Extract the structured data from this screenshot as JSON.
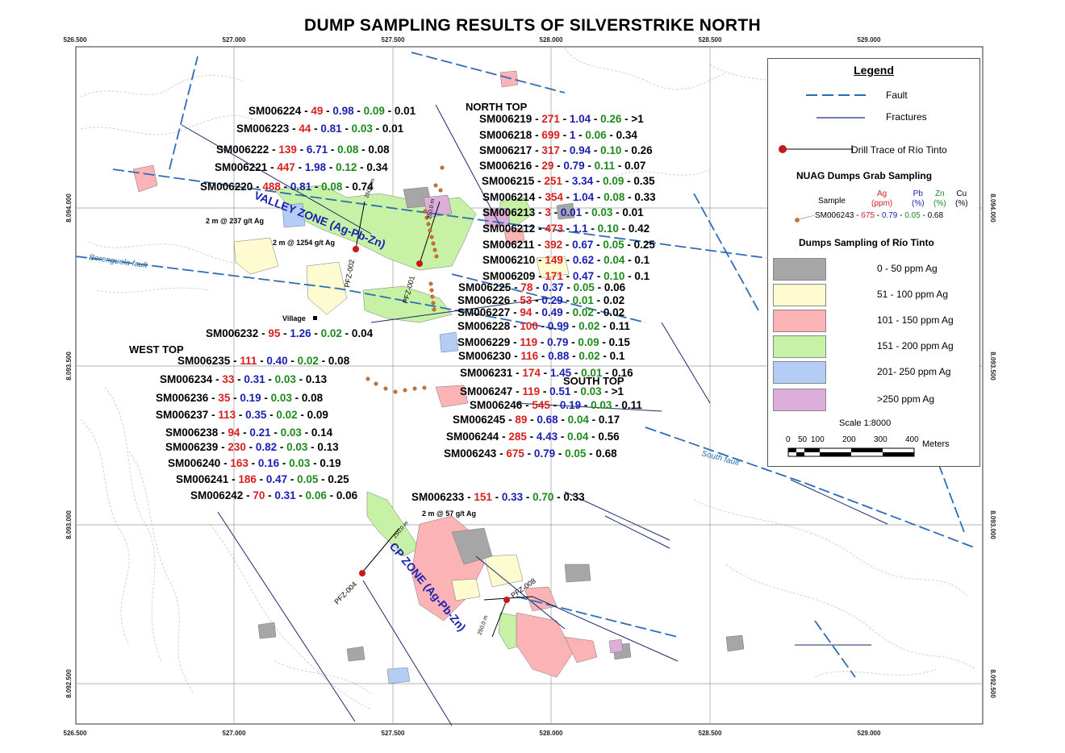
{
  "title": "DUMP SAMPLING RESULTS OF SILVERSTRIKE NORTH",
  "coords": {
    "x": [
      "526.500",
      "527.000",
      "527.500",
      "528.000",
      "528.500",
      "529.000"
    ],
    "y": [
      "8.094.000",
      "8.093.500",
      "8.093.000",
      "8.092.500"
    ]
  },
  "areas": {
    "north_top": "NORTH TOP",
    "west_top": "WEST TOP",
    "south_top": "SOUTH TOP",
    "village": "Village",
    "valley_zone": "VALLEY ZONE (Ag-Pb-Zn)",
    "cp_zone": "CP ZONE (Ag-Pb-Zn)",
    "berenguela_fault": "Berenguela fault",
    "south_fault": "South fault"
  },
  "drill": {
    "pfz001": "PFZ-001",
    "pfz002": "PFZ-002",
    "pfz004": "PFZ-004",
    "pfz008": "PFZ-008",
    "int1": "2 m @ 237 g/t Ag",
    "int2": "2 m @ 1254 g/t Ag",
    "int3": "2 m @ 57 g/t Ag",
    "d250a": "250,0 m",
    "d250b": "250,0 m",
    "d250c": "250,0 m",
    "d250d": "250,0 m"
  },
  "samples": [
    {
      "id": "SM006224",
      "ag": "49",
      "pb": "0.98",
      "zn": "0.09",
      "cu": "0.01"
    },
    {
      "id": "SM006223",
      "ag": "44",
      "pb": "0.81",
      "zn": "0.03",
      "cu": "0.01"
    },
    {
      "id": "SM006222",
      "ag": "139",
      "pb": "6.71",
      "zn": "0.08",
      "cu": "0.08"
    },
    {
      "id": "SM006221",
      "ag": "447",
      "pb": "1.98",
      "zn": "0.12",
      "cu": "0.34"
    },
    {
      "id": "SM006220",
      "ag": "488",
      "pb": "0.81",
      "zn": "0.08",
      "cu": "0.74"
    },
    {
      "id": "SM006219",
      "ag": "271",
      "pb": "1.04",
      "zn": "0.26",
      "cu": ">1"
    },
    {
      "id": "SM006218",
      "ag": "699",
      "pb": "1",
      "zn": "0.06",
      "cu": "0.34"
    },
    {
      "id": "SM006217",
      "ag": "317",
      "pb": "0.94",
      "zn": "0.10",
      "cu": "0.26"
    },
    {
      "id": "SM006216",
      "ag": "29",
      "pb": "0.79",
      "zn": "0.11",
      "cu": "0.07"
    },
    {
      "id": "SM006215",
      "ag": "251",
      "pb": "3.34",
      "zn": "0.09",
      "cu": "0.35"
    },
    {
      "id": "SM006214",
      "ag": "354",
      "pb": "1.04",
      "zn": "0.08",
      "cu": "0.33"
    },
    {
      "id": "SM006213",
      "ag": "3",
      "pb": "0.01",
      "zn": "0.03",
      "cu": "0.01"
    },
    {
      "id": "SM006212",
      "ag": "473",
      "pb": "1.1",
      "zn": "0.10",
      "cu": "0.42"
    },
    {
      "id": "SM006211",
      "ag": "392",
      "pb": "0.67",
      "zn": "0.05",
      "cu": "0.25"
    },
    {
      "id": "SM006210",
      "ag": "149",
      "pb": "0.62",
      "zn": "0.04",
      "cu": "0.1"
    },
    {
      "id": "SM006209",
      "ag": "171",
      "pb": "0.47",
      "zn": "0.10",
      "cu": "0.1"
    },
    {
      "id": "SM006225",
      "ag": "78",
      "pb": "0.37",
      "zn": "0.05",
      "cu": "0.06"
    },
    {
      "id": "SM006226",
      "ag": "53",
      "pb": "0.29",
      "zn": "0.01",
      "cu": "0.02"
    },
    {
      "id": "SM006227",
      "ag": "94",
      "pb": "0.49",
      "zn": "0.02",
      "cu": "0.02"
    },
    {
      "id": "SM006228",
      "ag": "100",
      "pb": "0.99",
      "zn": "0.02",
      "cu": "0.11"
    },
    {
      "id": "SM006229",
      "ag": "119",
      "pb": "0.79",
      "zn": "0.09",
      "cu": "0.15"
    },
    {
      "id": "SM006230",
      "ag": "116",
      "pb": "0.88",
      "zn": "0.02",
      "cu": "0.1"
    },
    {
      "id": "SM006231",
      "ag": "174",
      "pb": "1.45",
      "zn": "0.01",
      "cu": "0.16"
    },
    {
      "id": "SM006232",
      "ag": "95",
      "pb": "1.26",
      "zn": "0.02",
      "cu": "0.04"
    },
    {
      "id": "SM006235",
      "ag": "111",
      "pb": "0.40",
      "zn": "0.02",
      "cu": "0.08"
    },
    {
      "id": "SM006234",
      "ag": "33",
      "pb": "0.31",
      "zn": "0.03",
      "cu": "0.13"
    },
    {
      "id": "SM006236",
      "ag": "35",
      "pb": "0.19",
      "zn": "0.03",
      "cu": "0.08"
    },
    {
      "id": "SM006237",
      "ag": "113",
      "pb": "0.35",
      "zn": "0.02",
      "cu": "0.09"
    },
    {
      "id": "SM006238",
      "ag": "94",
      "pb": "0.21",
      "zn": "0.03",
      "cu": "0.14"
    },
    {
      "id": "SM006239",
      "ag": "230",
      "pb": "0.82",
      "zn": "0.03",
      "cu": "0.13"
    },
    {
      "id": "SM006240",
      "ag": "163",
      "pb": "0.16",
      "zn": "0.03",
      "cu": "0.19"
    },
    {
      "id": "SM006241",
      "ag": "186",
      "pb": "0.47",
      "zn": "0.05",
      "cu": "0.25"
    },
    {
      "id": "SM006242",
      "ag": "70",
      "pb": "0.31",
      "zn": "0.06",
      "cu": "0.06"
    },
    {
      "id": "SM006247",
      "ag": "119",
      "pb": "0.51",
      "zn": "0.03",
      "cu": ">1"
    },
    {
      "id": "SM006246",
      "ag": "545",
      "pb": "0.19",
      "zn": "0.03",
      "cu": "0.11"
    },
    {
      "id": "SM006245",
      "ag": "89",
      "pb": "0.68",
      "zn": "0.04",
      "cu": "0.17"
    },
    {
      "id": "SM006244",
      "ag": "285",
      "pb": "4.43",
      "zn": "0.04",
      "cu": "0.56"
    },
    {
      "id": "SM006243",
      "ag": "675",
      "pb": "0.79",
      "zn": "0.05",
      "cu": "0.68"
    },
    {
      "id": "SM006233",
      "ag": "151",
      "pb": "0.33",
      "zn": "0.70",
      "cu": "0.33"
    }
  ],
  "legend": {
    "title": "Legend",
    "fault": "Fault",
    "fractures": "Fractures",
    "drill": "Drill Trace of Río Tinto",
    "nuag_title": "NUAG Dumps Grab Sampling",
    "sample_word": "Sample",
    "col_ag": "Ag",
    "col_ag_unit": "(ppm)",
    "col_pb": "Pb",
    "col_pb_unit": "(%)",
    "col_zn": "Zn",
    "col_zn_unit": "(%)",
    "col_cu": "Cu",
    "col_cu_unit": "(%)",
    "example_id": "SM006243",
    "example_ag": "675",
    "example_pb": "0.79",
    "example_zn": "0.05",
    "example_cu": "0.68",
    "rio_title": "Dumps Sampling of Río Tinto",
    "classes": [
      {
        "label": "0 - 50 ppm Ag",
        "color": "#a6a6a6"
      },
      {
        "label": "51 - 100 ppm Ag",
        "color": "#fefbd0"
      },
      {
        "label": "101 - 150 ppm Ag",
        "color": "#fcb3b6"
      },
      {
        "label": "151 - 200 ppm Ag",
        "color": "#c7f2a6"
      },
      {
        "label": "201- 250 ppm Ag",
        "color": "#b4cdf5"
      },
      {
        "label": ">250 ppm Ag",
        "color": "#dcaed9"
      }
    ],
    "scale_title": "Scale 1:8000",
    "scale_ticks": [
      "0",
      "50",
      "100",
      "200",
      "300",
      "400"
    ],
    "scale_unit": "Meters"
  }
}
